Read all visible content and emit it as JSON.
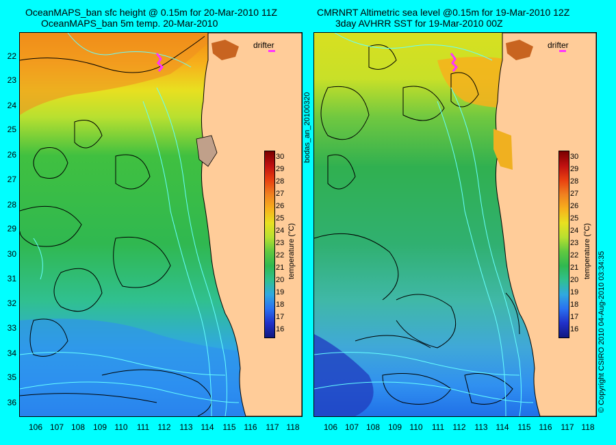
{
  "left_panel": {
    "title_line1": "OceanMAPS_ban sfc height @ 0.15m for 20-Mar-2010 11Z",
    "title_line2": "OceanMAPS_ban 5m temp. 20-Mar-2010",
    "drifter_label": "drifter",
    "colorbar_label": "temperature (°C)"
  },
  "right_panel": {
    "title_line1": "CMRNRT Altimetric sea level  @0.15m  for 19-Mar-2010 12Z",
    "title_line2": "3day AVHRR SST for 19-Mar-2010 00Z",
    "drifter_label": "drifter",
    "colorbar_label": "temperature (°C)"
  },
  "side_label": "bodas_an_20100320",
  "copyright": "© Copyright CSIRO 2010    04-Aug-2010 03:34:35",
  "latitudes": [
    "22",
    "23",
    "24",
    "25",
    "26",
    "27",
    "28",
    "29",
    "30",
    "31",
    "32",
    "33",
    "34",
    "35",
    "36"
  ],
  "longitudes": [
    "106",
    "107",
    "108",
    "109",
    "110",
    "111",
    "112",
    "113",
    "114",
    "115",
    "116",
    "117",
    "118"
  ],
  "colorbar_ticks": [
    "30",
    "29",
    "28",
    "27",
    "26",
    "25",
    "24",
    "23",
    "22",
    "21",
    "20",
    "19",
    "18",
    "17",
    "16"
  ],
  "colors": {
    "background": "#00ffff",
    "land": "#ffcc99",
    "drifter": "#ff33ff",
    "contour_black": "#000000",
    "contour_cyan": "#66ffff"
  }
}
